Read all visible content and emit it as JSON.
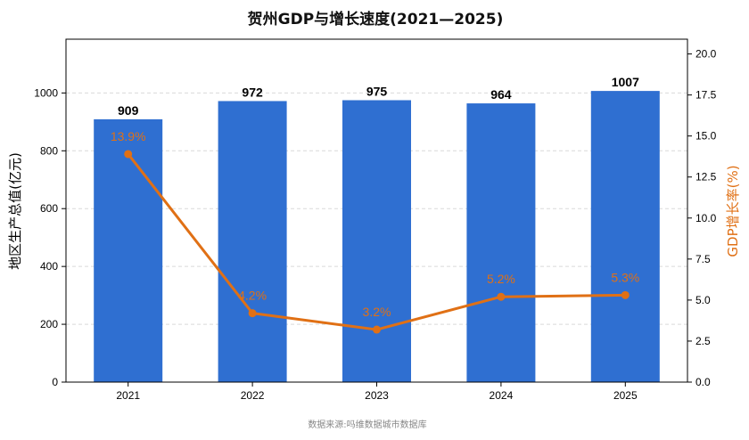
{
  "chart_data": {
    "type": "bar",
    "title": "贺州GDP与增长速度(2021—2025)",
    "categories": [
      "2021",
      "2022",
      "2023",
      "2024",
      "2025"
    ],
    "series": [
      {
        "type": "bar",
        "axis": "left",
        "values": [
          909,
          972,
          975,
          964,
          1007
        ],
        "value_labels": [
          "909",
          "972",
          "975",
          "964",
          "1007"
        ],
        "color": "#2f6fd1"
      },
      {
        "type": "line",
        "axis": "right",
        "values": [
          13.9,
          4.2,
          3.2,
          5.2,
          5.3
        ],
        "value_labels": [
          "13.9%",
          "4.2%",
          "3.2%",
          "5.2%",
          "5.3%"
        ],
        "color": "#e07015"
      }
    ],
    "ylabel": "地区生产总值(亿元)",
    "y2label": "GDP增长率(%)",
    "ylim": [
      0,
      1186
    ],
    "y2lim": [
      0,
      20.9
    ],
    "yticks": [
      0,
      200,
      400,
      600,
      800,
      1000
    ],
    "y2ticks": [
      "0.0",
      "2.5",
      "5.0",
      "7.5",
      "10.0",
      "12.5",
      "15.0",
      "17.5",
      "20.0"
    ],
    "grid": true,
    "legend": "none",
    "source": "数据来源:吗维数据城市数据库"
  }
}
